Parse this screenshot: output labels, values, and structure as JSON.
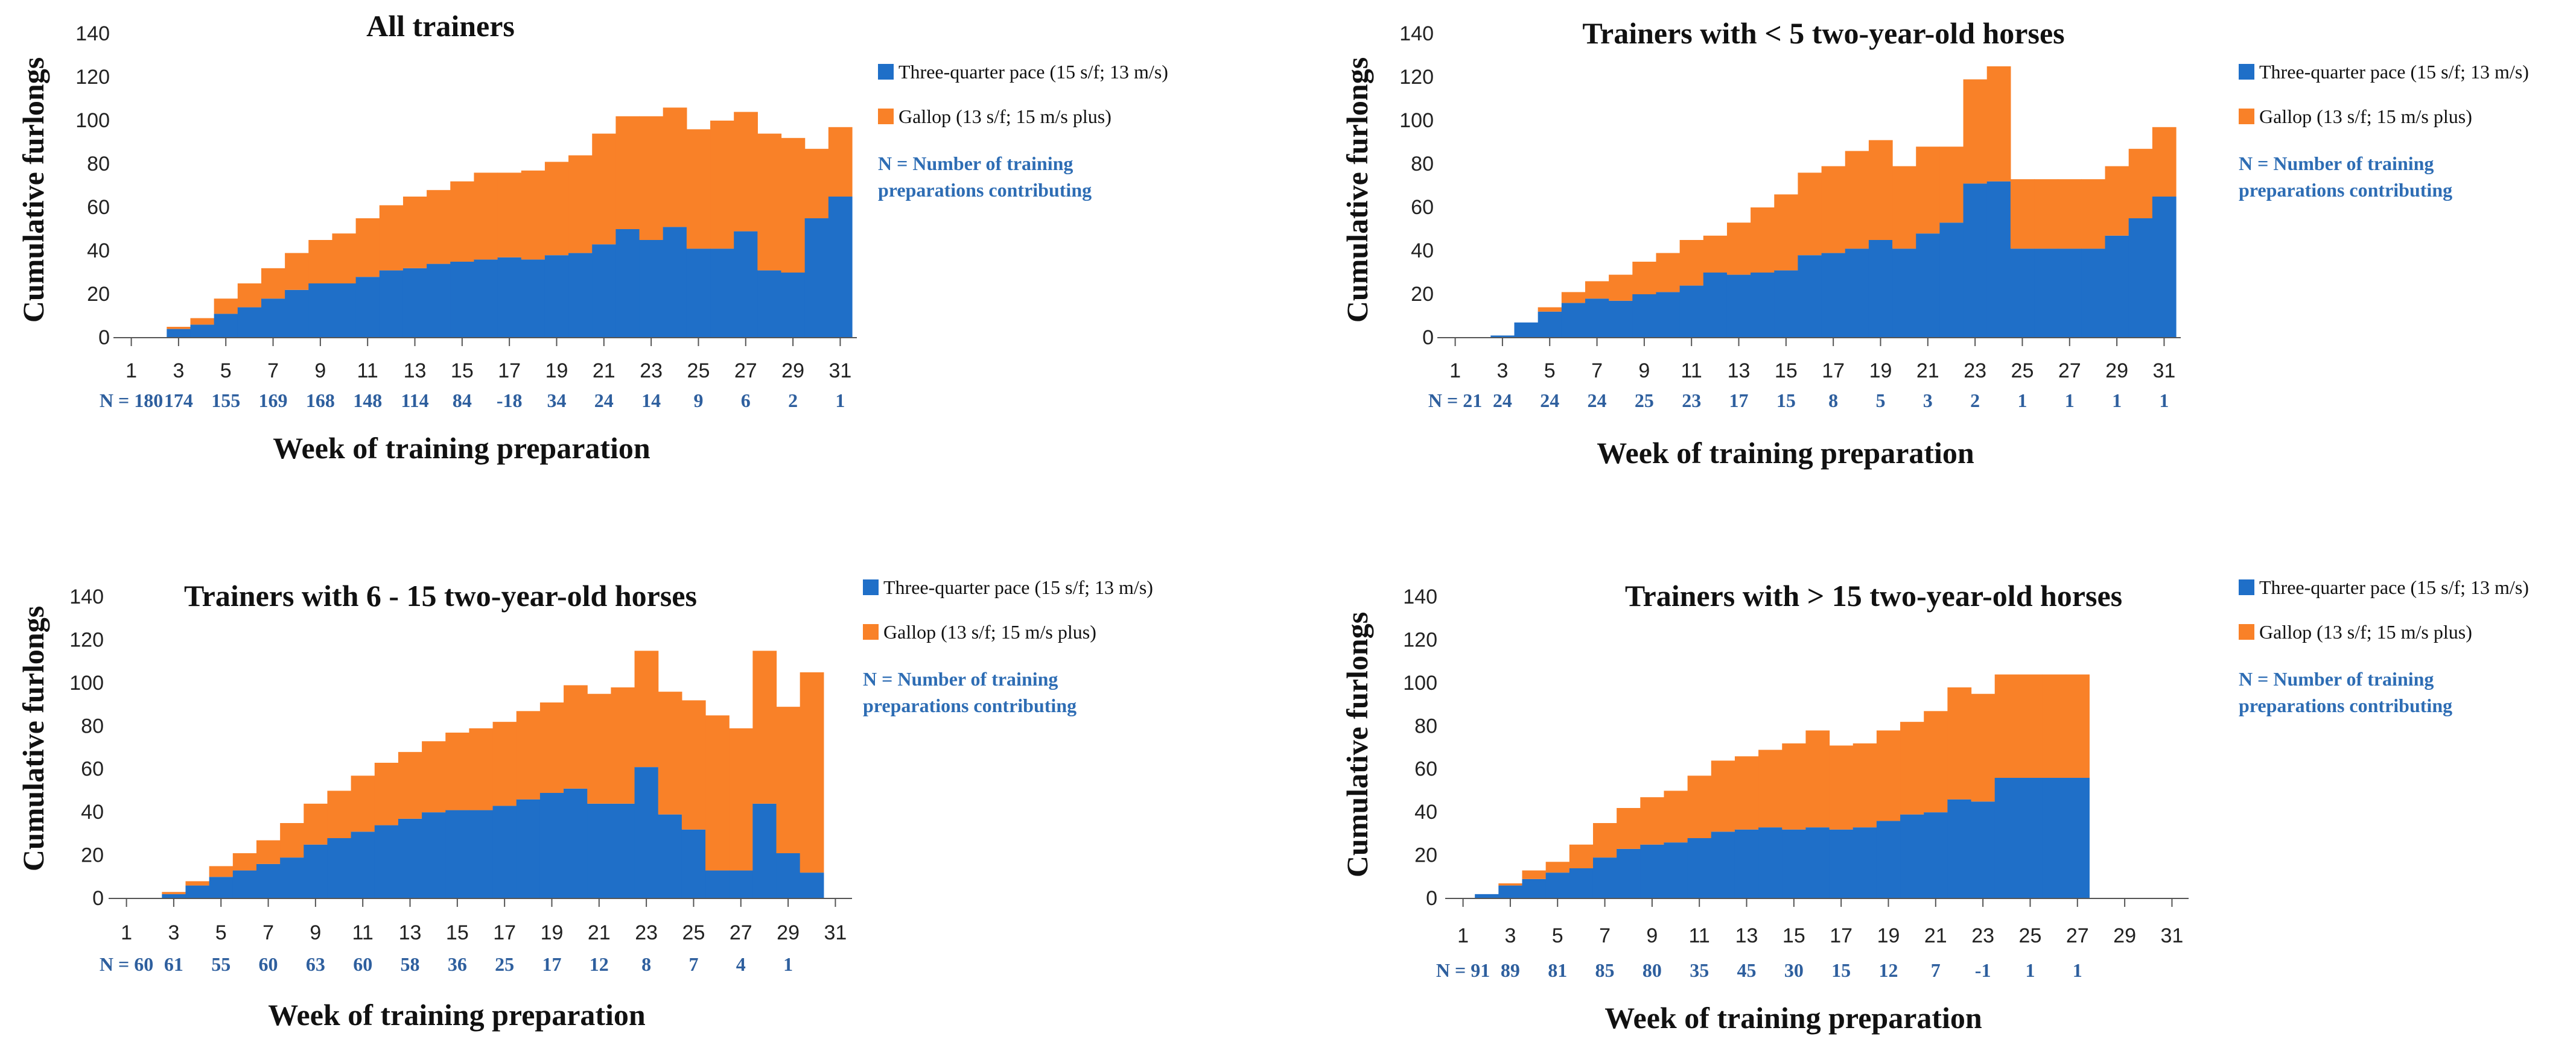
{
  "colors": {
    "three_quarter": "#1f6fc8",
    "gallop": "#f98128",
    "axis": "#555555",
    "n_text": "#2e5f9e",
    "note_text": "#2e6db4"
  },
  "legend": {
    "three_quarter": "Three-quarter pace (15 s/f; 13 m/s)",
    "gallop": "Gallop (13 s/f; 15 m/s plus)",
    "note_line1": "N = Number of training",
    "note_line2": "preparations contributing"
  },
  "chart_data": [
    {
      "type": "bar",
      "stacked": true,
      "title": "All trainers",
      "xlabel": "Week of training preparation",
      "ylabel": "Cumulative furlongs",
      "ylim": [
        0,
        140
      ],
      "yticks": [
        0,
        20,
        40,
        60,
        80,
        100,
        120,
        140
      ],
      "xticks": [
        1,
        3,
        5,
        7,
        9,
        11,
        13,
        15,
        17,
        19,
        21,
        23,
        25,
        27,
        29,
        31
      ],
      "n_labels": [
        "N = 180",
        "174",
        "155",
        "169",
        "168",
        "148",
        "114",
        "84",
        "-18",
        "34",
        "24",
        "14",
        "9",
        "6",
        "2",
        "1"
      ],
      "categories": [
        1,
        2,
        3,
        4,
        5,
        6,
        7,
        8,
        9,
        10,
        11,
        12,
        13,
        14,
        15,
        16,
        17,
        18,
        19,
        20,
        21,
        22,
        23,
        24,
        25,
        26,
        27,
        28,
        29,
        30,
        31
      ],
      "series": [
        {
          "name": "Three-quarter pace (15 s/f; 13 m/s)",
          "values": [
            0,
            0,
            4,
            6,
            11,
            14,
            18,
            22,
            25,
            25,
            28,
            31,
            32,
            34,
            35,
            36,
            37,
            36,
            38,
            39,
            43,
            50,
            45,
            51,
            41,
            41,
            49,
            31,
            30,
            55,
            65
          ]
        },
        {
          "name": "Gallop (13 s/f; 15 m/s plus)",
          "values": [
            0,
            0,
            1,
            3,
            7,
            11,
            14,
            17,
            20,
            23,
            27,
            30,
            33,
            34,
            37,
            40,
            39,
            41,
            43,
            45,
            51,
            52,
            57,
            55,
            55,
            59,
            55,
            63,
            62,
            32,
            32
          ]
        }
      ]
    },
    {
      "type": "bar",
      "stacked": true,
      "title": "Trainers with < 5 two-year-old horses",
      "xlabel": "Week of training preparation",
      "ylabel": "Cumulative furlongs",
      "ylim": [
        0,
        140
      ],
      "yticks": [
        0,
        20,
        40,
        60,
        80,
        100,
        120,
        140
      ],
      "xticks": [
        1,
        3,
        5,
        7,
        9,
        11,
        13,
        15,
        17,
        19,
        21,
        23,
        25,
        27,
        29,
        31
      ],
      "n_labels": [
        "N = 21",
        "24",
        "24",
        "24",
        "25",
        "23",
        "17",
        "15",
        "8",
        "5",
        "3",
        "2",
        "1",
        "1",
        "1",
        "1"
      ],
      "categories": [
        1,
        2,
        3,
        4,
        5,
        6,
        7,
        8,
        9,
        10,
        11,
        12,
        13,
        14,
        15,
        16,
        17,
        18,
        19,
        20,
        21,
        22,
        23,
        24,
        25,
        26,
        27,
        28,
        29,
        30,
        31
      ],
      "series": [
        {
          "name": "Three-quarter pace (15 s/f; 13 m/s)",
          "values": [
            0,
            0,
            1,
            7,
            12,
            16,
            18,
            17,
            20,
            21,
            24,
            30,
            29,
            30,
            31,
            38,
            39,
            41,
            45,
            41,
            48,
            53,
            71,
            72,
            41,
            41,
            41,
            41,
            47,
            55,
            65
          ]
        },
        {
          "name": "Gallop (13 s/f; 15 m/s plus)",
          "values": [
            0,
            0,
            0,
            0,
            2,
            5,
            8,
            12,
            15,
            18,
            21,
            17,
            24,
            30,
            35,
            38,
            40,
            45,
            46,
            38,
            40,
            35,
            48,
            53,
            32,
            32,
            32,
            32,
            32,
            32,
            32
          ]
        }
      ]
    },
    {
      "type": "bar",
      "stacked": true,
      "title": "Trainers with 6 - 15 two-year-old horses",
      "xlabel": "Week of training preparation",
      "ylabel": "Cumulative furlongs",
      "ylim": [
        0,
        140
      ],
      "yticks": [
        0,
        20,
        40,
        60,
        80,
        100,
        120,
        140
      ],
      "ytick_labels": [
        "0",
        "20",
        "40",
        "60",
        "80",
        "100",
        "120",
        "140"
      ],
      "xticks": [
        1,
        3,
        5,
        7,
        9,
        11,
        13,
        15,
        17,
        19,
        21,
        23,
        25,
        27,
        29,
        31
      ],
      "n_labels": [
        "N = 60",
        "61",
        "55",
        "60",
        "63",
        "60",
        "58",
        "36",
        "25",
        "17",
        "12",
        "8",
        "7",
        "4",
        "1"
      ],
      "categories": [
        1,
        2,
        3,
        4,
        5,
        6,
        7,
        8,
        9,
        10,
        11,
        12,
        13,
        14,
        15,
        16,
        17,
        18,
        19,
        20,
        21,
        22,
        23,
        24,
        25,
        26,
        27,
        28,
        29,
        30,
        31
      ],
      "series": [
        {
          "name": "Three-quarter pace (15 s/f; 13 m/s)",
          "values": [
            0,
            0,
            2,
            6,
            10,
            13,
            16,
            19,
            25,
            28,
            31,
            34,
            37,
            40,
            41,
            41,
            43,
            46,
            49,
            51,
            44,
            44,
            61,
            39,
            32,
            13,
            13,
            44,
            21,
            12,
            0
          ]
        },
        {
          "name": "Gallop (13 s/f; 15 m/s plus)",
          "values": [
            0,
            0,
            1,
            2,
            5,
            8,
            11,
            16,
            19,
            22,
            26,
            29,
            31,
            33,
            36,
            38,
            39,
            41,
            42,
            48,
            51,
            54,
            54,
            57,
            60,
            72,
            66,
            71,
            68,
            93,
            0
          ]
        }
      ]
    },
    {
      "type": "bar",
      "stacked": true,
      "title": "Trainers with > 15 two-year-old horses",
      "xlabel": "Week of training preparation",
      "ylabel": "Cumulative furlongs",
      "ylim": [
        0,
        140
      ],
      "yticks": [
        0,
        20,
        40,
        60,
        80,
        100,
        120,
        140
      ],
      "xticks": [
        1,
        3,
        5,
        7,
        9,
        11,
        13,
        15,
        17,
        19,
        21,
        23,
        25,
        27,
        29,
        31
      ],
      "n_labels": [
        "N = 91",
        "89",
        "81",
        "85",
        "80",
        "35",
        "45",
        "30",
        "15",
        "12",
        "7",
        "-1",
        "1",
        "1"
      ],
      "categories": [
        1,
        2,
        3,
        4,
        5,
        6,
        7,
        8,
        9,
        10,
        11,
        12,
        13,
        14,
        15,
        16,
        17,
        18,
        19,
        20,
        21,
        22,
        23,
        24,
        25,
        26,
        27,
        28,
        29,
        30,
        31
      ],
      "series": [
        {
          "name": "Three-quarter pace (15 s/f; 13 m/s)",
          "values": [
            0,
            2,
            6,
            9,
            12,
            14,
            19,
            23,
            25,
            26,
            28,
            31,
            32,
            33,
            32,
            33,
            32,
            33,
            36,
            39,
            40,
            46,
            45,
            56,
            56,
            56,
            56,
            0,
            0,
            0,
            0
          ]
        },
        {
          "name": "Gallop (13 s/f; 15 m/s plus)",
          "values": [
            0,
            0,
            1,
            4,
            5,
            11,
            16,
            19,
            22,
            24,
            29,
            33,
            34,
            36,
            40,
            45,
            39,
            39,
            42,
            43,
            47,
            52,
            50,
            48,
            48,
            48,
            48,
            0,
            0,
            0,
            0
          ]
        }
      ]
    }
  ]
}
